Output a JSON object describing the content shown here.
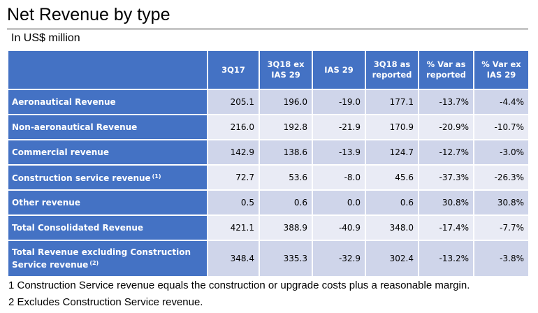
{
  "title": "Net Revenue by type",
  "subtitle": "In US$ million",
  "table": {
    "headers": [
      {
        "line1": "3Q17",
        "line2": ""
      },
      {
        "line1": "3Q18 ex",
        "line2": "IAS 29"
      },
      {
        "line1": "IAS 29",
        "line2": ""
      },
      {
        "line1": "3Q18 as",
        "line2": "reported"
      },
      {
        "line1": "% Var as",
        "line2": "reported"
      },
      {
        "line1": "% Var ex",
        "line2": "IAS 29"
      }
    ],
    "rows": [
      {
        "label": "Aeronautical Revenue",
        "note": "",
        "values": [
          "205.1",
          "196.0",
          "-19.0",
          "177.1",
          "-13.7%",
          "-4.4%"
        ]
      },
      {
        "label": "Non-aeronautical Revenue",
        "note": "",
        "values": [
          "216.0",
          "192.8",
          "-21.9",
          "170.9",
          "-20.9%",
          "-10.7%"
        ]
      },
      {
        "label": "Commercial revenue",
        "note": "",
        "values": [
          "142.9",
          "138.6",
          "-13.9",
          "124.7",
          "-12.7%",
          "-3.0%"
        ]
      },
      {
        "label": "Construction service revenue",
        "note": "(1)",
        "values": [
          "72.7",
          "53.6",
          "-8.0",
          "45.6",
          "-37.3%",
          "-26.3%"
        ]
      },
      {
        "label": "Other revenue",
        "note": "",
        "values": [
          "0.5",
          "0.6",
          "0.0",
          "0.6",
          "30.8%",
          "30.8%"
        ]
      },
      {
        "label": "Total Consolidated Revenue",
        "note": "",
        "values": [
          "421.1",
          "388.9",
          "-40.9",
          "348.0",
          "-17.4%",
          "-7.7%"
        ]
      },
      {
        "label_line1": "Total Revenue excluding Construction",
        "label_line2": "Service revenue",
        "note": "(2)",
        "values": [
          "348.4",
          "335.3",
          "-32.9",
          "302.4",
          "-13.2%",
          "-3.8%"
        ]
      }
    ]
  },
  "footnotes": [
    "1 Construction Service revenue equals the construction or upgrade costs plus a reasonable margin.",
    "2 Excludes Construction Service revenue."
  ],
  "colors": {
    "header_blue": "#4472c4",
    "row_dark": "#cfd5ea",
    "row_light": "#e9ebf5"
  }
}
